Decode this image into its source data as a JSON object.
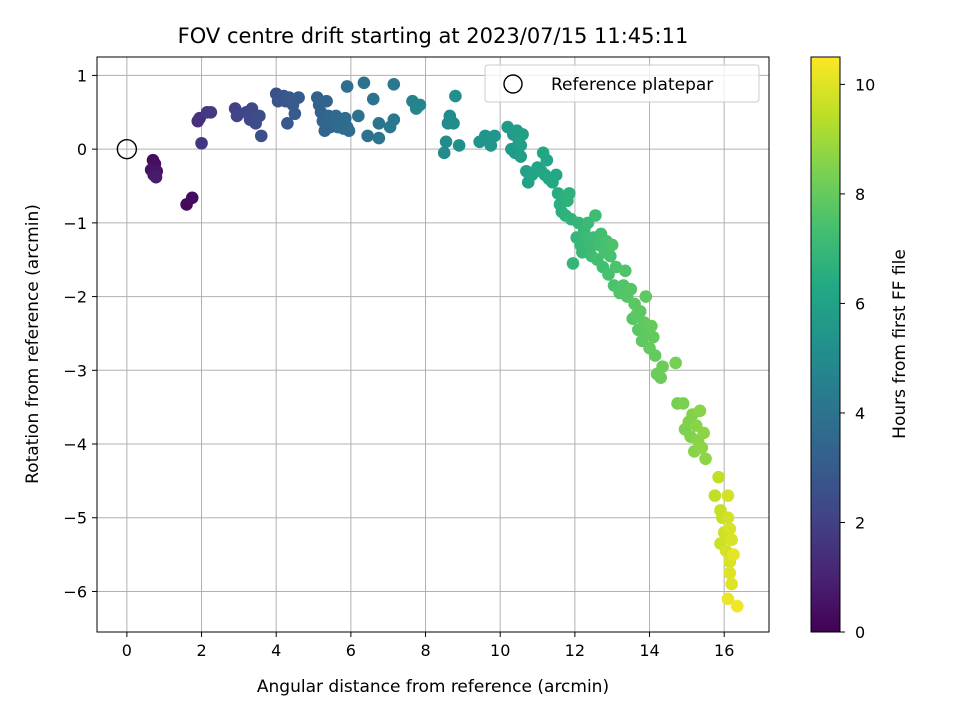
{
  "chart_data": {
    "type": "scatter",
    "title": "FOV centre drift starting at 2023/07/15 11:45:11",
    "xlabel": "Angular distance from reference (arcmin)",
    "ylabel": "Rotation from reference (arcmin)",
    "xlim": [
      -0.8,
      17.2
    ],
    "ylim": [
      -6.55,
      1.25
    ],
    "xticks": [
      0,
      2,
      4,
      6,
      8,
      10,
      12,
      14,
      16
    ],
    "xtick_labels": [
      "0",
      "2",
      "4",
      "6",
      "8",
      "10",
      "12",
      "14",
      "16"
    ],
    "yticks": [
      1,
      0,
      -1,
      -2,
      -3,
      -4,
      -5,
      -6
    ],
    "ytick_labels": [
      "1",
      "0",
      "−1",
      "−2",
      "−3",
      "−4",
      "−5",
      "−6"
    ],
    "grid": true,
    "legend": {
      "label": "Reference platepar",
      "location": "top-right"
    },
    "colorbar": {
      "label": "Hours from first FF file",
      "range": [
        0,
        10.5
      ],
      "ticks": [
        0,
        2,
        4,
        6,
        8,
        10
      ],
      "tick_labels": [
        "0",
        "2",
        "4",
        "6",
        "8",
        "10"
      ],
      "colormap": "viridis"
    },
    "reference_point": {
      "x": 0,
      "y": 0
    },
    "series": [
      {
        "points": [
          [
            0.7,
            -0.15,
            0.3
          ],
          [
            0.75,
            -0.2,
            0.4
          ],
          [
            0.65,
            -0.28,
            0.5
          ],
          [
            0.8,
            -0.3,
            0.6
          ],
          [
            0.72,
            -0.35,
            0.7
          ],
          [
            0.78,
            -0.38,
            0.8
          ],
          [
            1.6,
            -0.75,
            0.25
          ],
          [
            1.75,
            -0.66,
            0.35
          ],
          [
            1.9,
            0.38,
            1.4
          ],
          [
            1.95,
            0.42,
            1.5
          ],
          [
            2.0,
            0.08,
            1.6
          ],
          [
            2.15,
            0.5,
            1.7
          ],
          [
            2.25,
            0.5,
            1.8
          ],
          [
            2.9,
            0.55,
            2.0
          ],
          [
            2.95,
            0.45,
            2.1
          ],
          [
            3.2,
            0.5,
            2.2
          ],
          [
            3.35,
            0.55,
            2.3
          ],
          [
            3.3,
            0.4,
            2.3
          ],
          [
            3.45,
            0.35,
            2.4
          ],
          [
            3.55,
            0.45,
            2.5
          ],
          [
            3.6,
            0.18,
            2.5
          ],
          [
            4.0,
            0.75,
            2.6
          ],
          [
            4.05,
            0.65,
            2.7
          ],
          [
            4.2,
            0.72,
            2.8
          ],
          [
            4.25,
            0.65,
            2.8
          ],
          [
            4.3,
            0.35,
            2.9
          ],
          [
            4.35,
            0.7,
            2.9
          ],
          [
            4.45,
            0.6,
            3.0
          ],
          [
            4.5,
            0.48,
            3.0
          ],
          [
            4.6,
            0.7,
            3.0
          ],
          [
            5.1,
            0.7,
            3.2
          ],
          [
            5.15,
            0.6,
            3.3
          ],
          [
            5.2,
            0.5,
            3.3
          ],
          [
            5.25,
            0.38,
            3.4
          ],
          [
            5.3,
            0.25,
            3.4
          ],
          [
            5.35,
            0.65,
            3.4
          ],
          [
            5.4,
            0.45,
            3.5
          ],
          [
            5.45,
            0.3,
            3.5
          ],
          [
            5.5,
            0.4,
            3.5
          ],
          [
            5.55,
            0.35,
            3.5
          ],
          [
            5.6,
            0.45,
            3.6
          ],
          [
            5.65,
            0.3,
            3.6
          ],
          [
            5.7,
            0.4,
            3.6
          ],
          [
            5.75,
            0.35,
            3.6
          ],
          [
            5.8,
            0.28,
            3.7
          ],
          [
            5.85,
            0.42,
            3.7
          ],
          [
            5.9,
            0.3,
            3.7
          ],
          [
            5.95,
            0.25,
            3.7
          ],
          [
            5.9,
            0.85,
            3.8
          ],
          [
            6.2,
            0.45,
            3.9
          ],
          [
            6.35,
            0.9,
            3.9
          ],
          [
            6.45,
            0.18,
            3.9
          ],
          [
            6.6,
            0.68,
            4.0
          ],
          [
            6.75,
            0.35,
            4.0
          ],
          [
            6.75,
            0.15,
            4.1
          ],
          [
            7.05,
            0.3,
            4.2
          ],
          [
            7.15,
            0.4,
            4.2
          ],
          [
            7.15,
            0.88,
            4.2
          ],
          [
            7.65,
            0.65,
            4.6
          ],
          [
            7.75,
            0.55,
            4.7
          ],
          [
            7.85,
            0.6,
            4.7
          ],
          [
            8.5,
            -0.05,
            5.0
          ],
          [
            8.55,
            0.1,
            5.0
          ],
          [
            8.6,
            0.35,
            5.0
          ],
          [
            8.65,
            0.45,
            5.1
          ],
          [
            8.75,
            0.35,
            5.1
          ],
          [
            8.8,
            0.72,
            5.2
          ],
          [
            8.9,
            0.05,
            5.2
          ],
          [
            9.45,
            0.1,
            5.4
          ],
          [
            9.6,
            0.18,
            5.4
          ],
          [
            9.75,
            0.05,
            5.5
          ],
          [
            9.85,
            0.18,
            5.5
          ],
          [
            10.2,
            0.3,
            5.6
          ],
          [
            10.3,
            0.0,
            5.7
          ],
          [
            10.35,
            0.2,
            5.7
          ],
          [
            10.4,
            -0.05,
            5.7
          ],
          [
            10.45,
            0.25,
            5.8
          ],
          [
            10.5,
            0.1,
            5.8
          ],
          [
            10.55,
            -0.1,
            5.8
          ],
          [
            10.6,
            0.2,
            5.9
          ],
          [
            10.55,
            0.05,
            5.9
          ],
          [
            10.7,
            -0.3,
            6.0
          ],
          [
            10.75,
            -0.45,
            6.0
          ],
          [
            10.85,
            -0.35,
            6.1
          ],
          [
            11.0,
            -0.25,
            6.1
          ],
          [
            11.1,
            -0.3,
            6.1
          ],
          [
            11.15,
            -0.05,
            6.2
          ],
          [
            11.2,
            -0.35,
            6.2
          ],
          [
            11.25,
            -0.15,
            6.2
          ],
          [
            11.3,
            -0.4,
            6.3
          ],
          [
            11.4,
            -0.45,
            6.3
          ],
          [
            11.5,
            -0.35,
            6.3
          ],
          [
            11.55,
            -0.6,
            6.5
          ],
          [
            11.6,
            -0.75,
            6.6
          ],
          [
            11.65,
            -0.85,
            6.6
          ],
          [
            11.7,
            -0.65,
            6.6
          ],
          [
            11.75,
            -0.9,
            6.7
          ],
          [
            11.8,
            -0.7,
            6.7
          ],
          [
            11.85,
            -0.6,
            6.7
          ],
          [
            11.9,
            -0.95,
            6.8
          ],
          [
            11.95,
            -1.55,
            6.9
          ],
          [
            12.05,
            -1.2,
            6.9
          ],
          [
            12.1,
            -1.0,
            6.9
          ],
          [
            12.15,
            -1.3,
            7.0
          ],
          [
            12.2,
            -1.4,
            7.0
          ],
          [
            12.25,
            -1.1,
            7.0
          ],
          [
            12.3,
            -1.2,
            7.1
          ],
          [
            12.35,
            -1.0,
            7.1
          ],
          [
            12.4,
            -1.35,
            7.1
          ],
          [
            12.45,
            -1.45,
            7.2
          ],
          [
            12.5,
            -1.2,
            7.2
          ],
          [
            12.55,
            -0.9,
            7.2
          ],
          [
            12.6,
            -1.5,
            7.3
          ],
          [
            12.65,
            -1.3,
            7.3
          ],
          [
            12.7,
            -1.15,
            7.3
          ],
          [
            12.75,
            -1.6,
            7.3
          ],
          [
            12.8,
            -1.4,
            7.4
          ],
          [
            12.85,
            -1.25,
            7.4
          ],
          [
            12.9,
            -1.7,
            7.4
          ],
          [
            12.95,
            -1.45,
            7.4
          ],
          [
            13.0,
            -1.3,
            7.5
          ],
          [
            13.05,
            -1.85,
            7.5
          ],
          [
            13.1,
            -1.6,
            7.5
          ],
          [
            13.2,
            -1.95,
            7.6
          ],
          [
            13.3,
            -1.85,
            7.6
          ],
          [
            13.35,
            -1.65,
            7.6
          ],
          [
            13.4,
            -2.0,
            7.7
          ],
          [
            13.5,
            -1.9,
            7.7
          ],
          [
            13.55,
            -2.3,
            7.7
          ],
          [
            13.6,
            -2.1,
            7.8
          ],
          [
            13.65,
            -2.25,
            7.8
          ],
          [
            13.7,
            -2.45,
            7.8
          ],
          [
            13.75,
            -2.2,
            7.8
          ],
          [
            13.8,
            -2.6,
            7.9
          ],
          [
            13.85,
            -2.35,
            7.9
          ],
          [
            13.9,
            -2.0,
            7.9
          ],
          [
            13.95,
            -2.5,
            7.9
          ],
          [
            14.0,
            -2.7,
            8.0
          ],
          [
            14.05,
            -2.4,
            8.0
          ],
          [
            14.1,
            -2.55,
            8.0
          ],
          [
            14.15,
            -2.8,
            8.0
          ],
          [
            14.2,
            -3.05,
            8.1
          ],
          [
            14.3,
            -3.1,
            8.1
          ],
          [
            14.35,
            -2.95,
            8.1
          ],
          [
            14.7,
            -2.9,
            8.3
          ],
          [
            14.75,
            -3.45,
            8.3
          ],
          [
            14.9,
            -3.45,
            8.4
          ],
          [
            14.95,
            -3.8,
            8.4
          ],
          [
            15.05,
            -3.7,
            8.5
          ],
          [
            15.1,
            -3.9,
            8.5
          ],
          [
            15.15,
            -3.6,
            8.5
          ],
          [
            15.2,
            -4.1,
            8.6
          ],
          [
            15.25,
            -3.75,
            8.6
          ],
          [
            15.3,
            -3.95,
            8.6
          ],
          [
            15.35,
            -3.55,
            8.6
          ],
          [
            15.4,
            -4.05,
            8.7
          ],
          [
            15.45,
            -3.85,
            8.7
          ],
          [
            15.5,
            -4.2,
            8.7
          ],
          [
            15.75,
            -4.7,
            9.5
          ],
          [
            15.85,
            -4.45,
            9.5
          ],
          [
            15.9,
            -4.9,
            9.6
          ],
          [
            15.95,
            -5.0,
            9.6
          ],
          [
            15.9,
            -5.35,
            9.7
          ],
          [
            16.0,
            -5.2,
            9.7
          ],
          [
            16.05,
            -5.45,
            9.8
          ],
          [
            16.1,
            -4.7,
            9.8
          ],
          [
            16.1,
            -5.0,
            9.8
          ],
          [
            16.15,
            -5.15,
            9.9
          ],
          [
            16.15,
            -5.6,
            9.9
          ],
          [
            16.2,
            -5.3,
            9.9
          ],
          [
            16.15,
            -5.75,
            10.0
          ],
          [
            16.2,
            -5.9,
            10.0
          ],
          [
            16.25,
            -5.5,
            10.1
          ],
          [
            16.1,
            -6.1,
            10.2
          ],
          [
            16.35,
            -6.2,
            10.3
          ]
        ]
      }
    ]
  }
}
